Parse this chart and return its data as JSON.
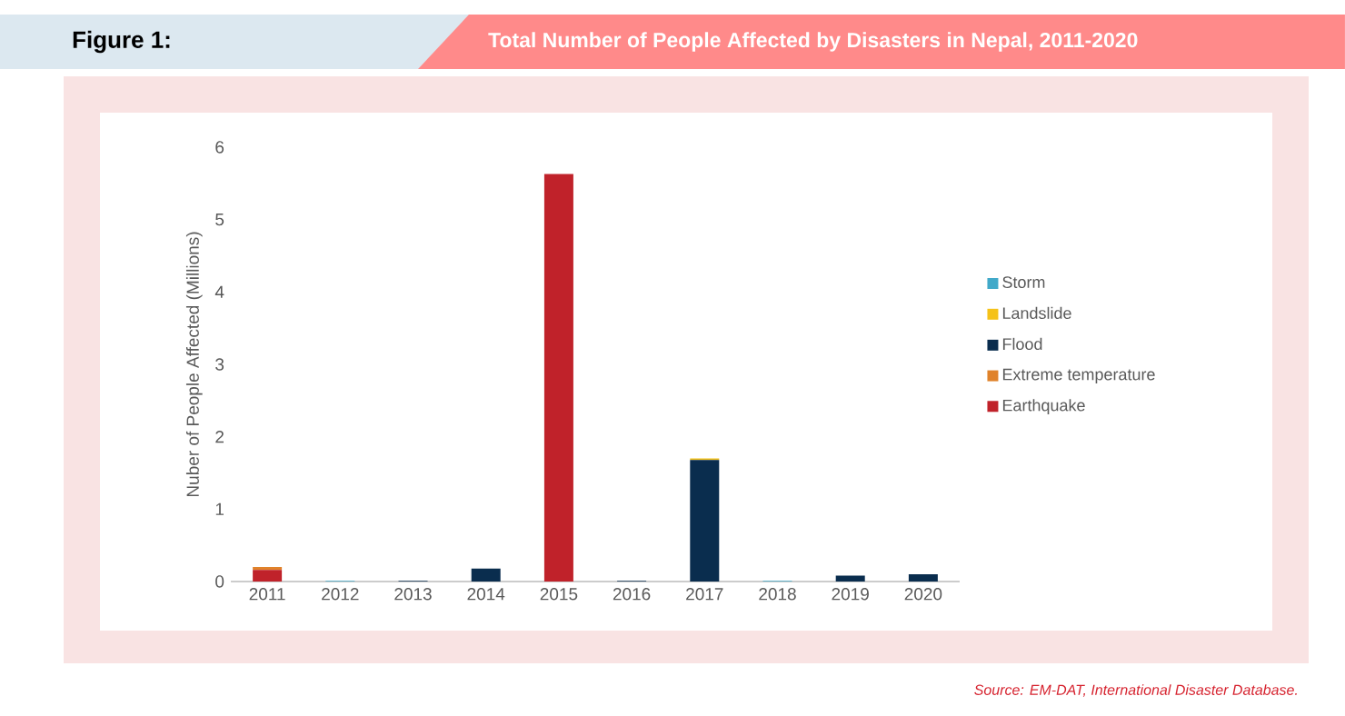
{
  "chart_data": {
    "type": "bar",
    "stacked": true,
    "title": "Total Number of People Affected by Disasters in Nepal, 2011-2020",
    "annotations": [
      "Figure 1:",
      "Source: EM-DAT, International Disaster Database."
    ],
    "ylabel": "Nuber of People Affected (Millions)",
    "categories": [
      "2011",
      "2012",
      "2013",
      "2014",
      "2015",
      "2016",
      "2017",
      "2018",
      "2019",
      "2020"
    ],
    "series": [
      {
        "name": "Earthquake",
        "color": "#c0222a",
        "values": [
          0.16,
          0,
          0,
          0,
          5.63,
          0,
          0,
          0,
          0,
          0
        ]
      },
      {
        "name": "Extreme temperature",
        "color": "#e0822a",
        "values": [
          0.04,
          0,
          0,
          0,
          0,
          0,
          0,
          0,
          0,
          0
        ]
      },
      {
        "name": "Flood",
        "color": "#0a2d4e",
        "values": [
          0,
          0,
          0.01,
          0.18,
          0,
          0.01,
          1.68,
          0,
          0.08,
          0.1
        ]
      },
      {
        "name": "Landslide",
        "color": "#f5c219",
        "values": [
          0,
          0,
          0,
          0,
          0,
          0,
          0.02,
          0,
          0,
          0
        ]
      },
      {
        "name": "Storm",
        "color": "#41a9c9",
        "values": [
          0,
          0.01,
          0,
          0,
          0,
          0,
          0,
          0.01,
          0,
          0
        ]
      }
    ],
    "ylim": [
      0,
      6
    ],
    "yticks": [
      0,
      1,
      2,
      3,
      4,
      5,
      6
    ],
    "grid": false,
    "legend": "right"
  }
}
